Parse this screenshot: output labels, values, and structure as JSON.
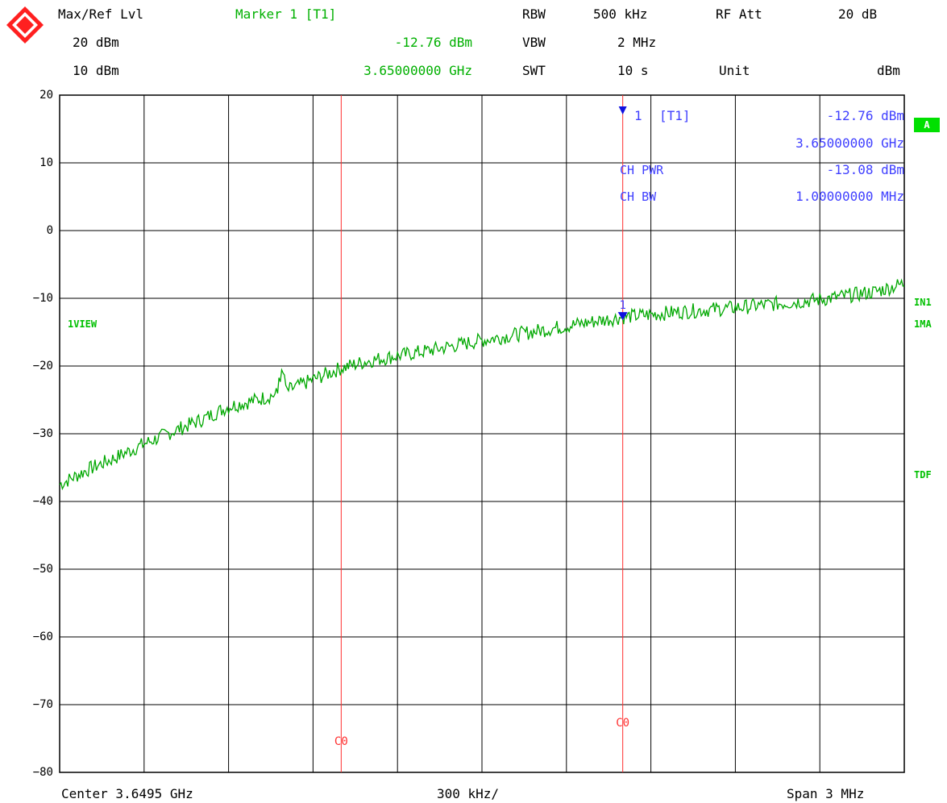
{
  "header": {
    "row1": [
      "Max/Ref Lvl",
      "Marker 1 [T1]",
      "RBW",
      "500 kHz",
      "RF Att",
      "20 dB"
    ],
    "row2": [
      "20 dBm",
      "-12.76 dBm",
      "VBW",
      "2 MHz"
    ],
    "row3": [
      "10 dBm",
      "3.65000000 GHz",
      "SWT",
      "10 s",
      "Unit",
      "dBm"
    ]
  },
  "colors": {
    "trace": "#00a800",
    "channel_lines": "#ff3030",
    "marker": "#1010e0",
    "marker_text": "#4040ff",
    "grid": "#000000"
  },
  "side_labels": {
    "badge": "A",
    "in1": "IN1",
    "ma1": "1MA",
    "tdf": "TDF",
    "view": "1VIEW"
  },
  "marker_table": {
    "marker_label": "1",
    "marker_tag": "[T1]",
    "marker_level": "-12.76 dBm",
    "marker_freq": "3.65000000 GHz",
    "ch_pwr_label": "CH PWR",
    "ch_pwr_value": "-13.08 dBm",
    "ch_bw_label": "CH BW",
    "ch_bw_value": "1.00000000 MHz"
  },
  "footer": {
    "center": "Center 3.6495 GHz",
    "div": "300 kHz/",
    "span": "Span 3 MHz"
  },
  "chart_data": {
    "type": "line",
    "x_unit": "GHz",
    "y_unit": "dBm",
    "xlim": [
      3.648,
      3.651
    ],
    "ylim": [
      -80,
      20
    ],
    "grid": true,
    "yticks": [
      20,
      10,
      0,
      -10,
      -20,
      -30,
      -40,
      -50,
      -60,
      -70,
      -80
    ],
    "channel_lines": [
      {
        "label": "C0",
        "x": 3.649
      },
      {
        "label": "C0",
        "x": 3.65
      }
    ],
    "marker": {
      "label": "1",
      "x": 3.65,
      "y": -12.76
    },
    "series": [
      {
        "x": [
          3.648,
          3.6481,
          3.6482,
          3.6483,
          3.6484,
          3.6485,
          3.6486,
          3.6487,
          3.6488,
          3.6489,
          3.649,
          3.6491,
          3.6492,
          3.6493,
          3.6494,
          3.6495,
          3.6496,
          3.6497,
          3.6498,
          3.6499,
          3.65,
          3.6501,
          3.6502,
          3.6503,
          3.6504,
          3.6505,
          3.6506,
          3.6507,
          3.6508,
          3.6509,
          3.651
        ],
        "y": [
          -37.5,
          -35.3,
          -33.5,
          -31.5,
          -29.7,
          -28.0,
          -26.0,
          -25.0,
          -23.8,
          -22.0,
          -20.3,
          -19.2,
          -18.5,
          -17.8,
          -17.0,
          -16.2,
          -15.5,
          -14.8,
          -14.1,
          -13.4,
          -12.76,
          -12.4,
          -12.0,
          -11.7,
          -11.4,
          -11.0,
          -10.6,
          -10.2,
          -9.6,
          -9.0,
          -7.8
        ]
      }
    ]
  }
}
